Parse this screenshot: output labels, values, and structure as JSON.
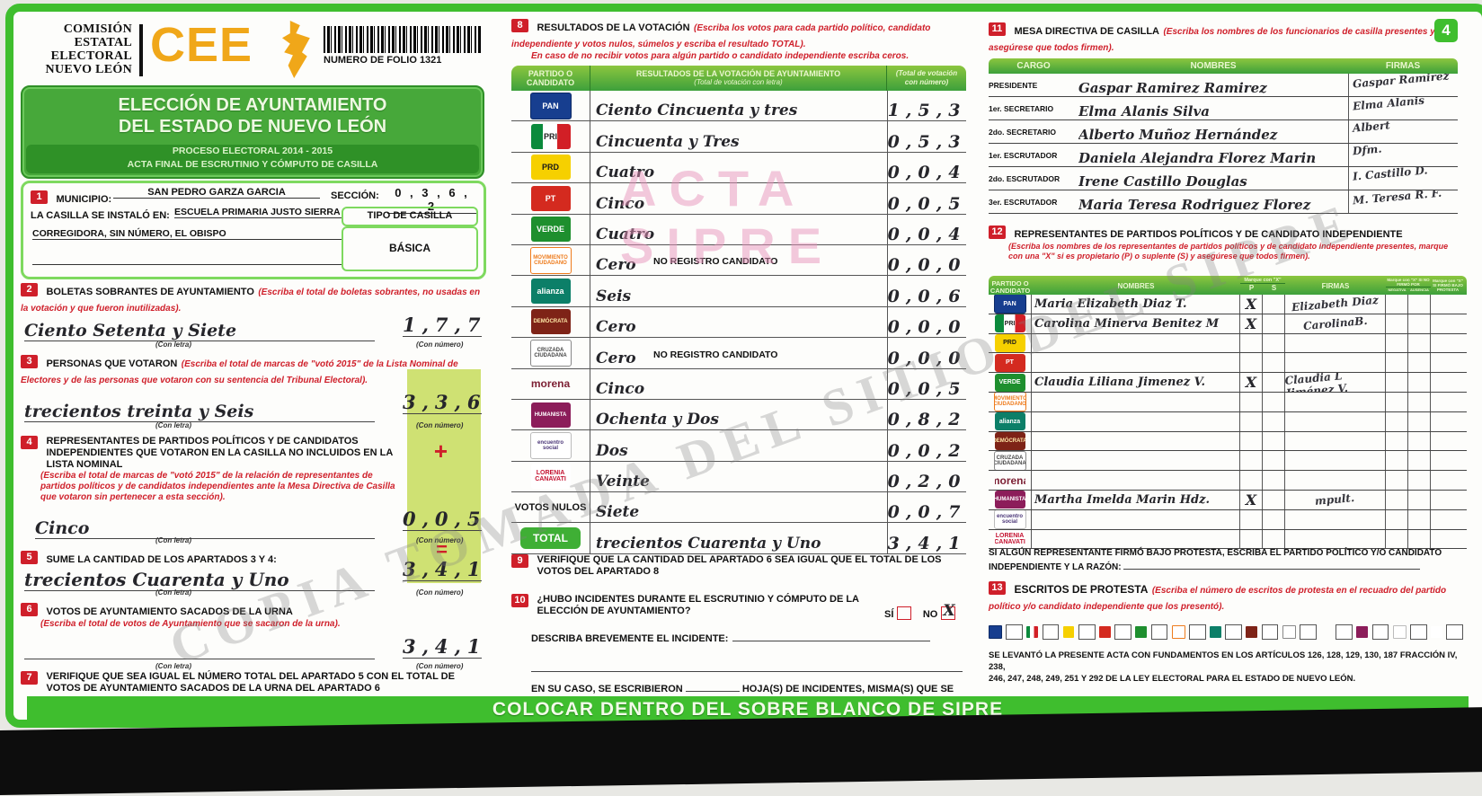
{
  "header": {
    "org_lines": [
      "COMISIÓN",
      "ESTATAL",
      "ELECTORAL",
      "NUEVO LEÓN"
    ],
    "logo_text": "CEE",
    "folio": "NUMERO DE FOLIO 1321",
    "title1": "ELECCIÓN DE AYUNTAMIENTO",
    "title2": "DEL ESTADO DE NUEVO LEÓN",
    "subtitle1": "PROCESO ELECTORAL 2014 - 2015",
    "subtitle2": "ACTA FINAL DE ESCRUTINIO Y CÓMPUTO DE CASILLA",
    "page_badge": "4"
  },
  "section1": {
    "num": "1",
    "municipio_label": "MUNICIPIO:",
    "municipio_value": "SAN PEDRO GARZA GARCIA",
    "seccion_label": "SECCIÓN:",
    "seccion_value": "0 , 3 , 6 , 2",
    "casilla_label": "LA CASILLA SE INSTALÓ EN:",
    "casilla_line1": "ESCUELA PRIMARIA JUSTO SIERRA",
    "casilla_line2": "CORREGIDORA, SIN NÚMERO, EL OBISPO",
    "tipo_label": "TIPO DE CASILLA",
    "tipo_value": "BÁSICA"
  },
  "section2": {
    "num": "2",
    "title": "BOLETAS SOBRANTES DE AYUNTAMIENTO",
    "inst": "(Escriba el total de boletas sobrantes, no usadas en la votación y que fueron inutilizadas).",
    "letra": "Ciento Setenta y Siete",
    "numero": "1,7,7",
    "conletra": "(Con letra)",
    "connumero": "(Con número)"
  },
  "section3": {
    "num": "3",
    "title": "PERSONAS QUE VOTARON",
    "inst": "(Escriba el total de marcas de \"votó 2015\" de la Lista Nominal de Electores y de las personas que votaron con su sentencia del Tribunal Electoral).",
    "letra": "trecientos treinta y Seis",
    "numero": "3,3,6",
    "conletra": "(Con letra)",
    "connumero": "(Con número)"
  },
  "section4": {
    "num": "4",
    "title": "REPRESENTANTES DE PARTIDOS POLÍTICOS Y DE CANDIDATOS INDEPENDIENTES QUE VOTARON EN LA CASILLA NO INCLUIDOS EN LA LISTA NOMINAL",
    "inst": "(Escriba el total de marcas de \"votó 2015\" de la relación de representantes de partidos políticos y de candidatos independientes ante la Mesa Directiva de Casilla que votaron sin pertenecer a esta sección).",
    "letra": "Cinco",
    "numero": "0,0,5",
    "plus": "+",
    "conletra": "(Con letra)",
    "connumero": "(Con número)"
  },
  "section5": {
    "num": "5",
    "title": "SUME LA CANTIDAD DE LOS APARTADOS 3 Y 4:",
    "letra": "trecientos Cuarenta y Uno",
    "numero": "3,4,1",
    "equals": "=",
    "conletra": "(Con letra)",
    "connumero": "(Con número)"
  },
  "section6": {
    "num": "6",
    "title": "VOTOS DE AYUNTAMIENTO SACADOS DE LA URNA",
    "inst": "(Escriba el total de votos de Ayuntamiento que se sacaron de la urna).",
    "letra": "",
    "numero": "3,4,1",
    "conletra": "(Con letra)",
    "connumero": "(Con número)"
  },
  "section7": {
    "num": "7",
    "title": "VERIFIQUE QUE SEA IGUAL EL NÚMERO TOTAL DEL APARTADO 5 CON EL TOTAL DE VOTOS DE AYUNTAMIENTO SACADOS DE LA URNA DEL APARTADO 6"
  },
  "section8": {
    "num": "8",
    "title": "RESULTADOS DE LA VOTACIÓN",
    "inst1": "(Escriba los votos para cada partido político, candidato independiente y votos nulos, súmelos y escriba el resultado TOTAL).",
    "inst2": "En caso de no recibir votos para algún partido o candidato independiente escriba ceros.",
    "col1": "PARTIDO O CANDIDATO",
    "col2a": "RESULTADOS DE LA VOTACIÓN DE AYUNTAMIENTO",
    "col2b": "(Total de votación con letra)",
    "col3": "(Total de votación con número)"
  },
  "results_rows": [
    {
      "party": "pan",
      "letra": "Ciento Cincuenta y tres",
      "numero": "1,5,3"
    },
    {
      "party": "pri",
      "letra": "Cincuenta y Tres",
      "numero": "0,5,3"
    },
    {
      "party": "prd",
      "letra": "Cuatro",
      "numero": "0,0,4"
    },
    {
      "party": "pt",
      "letra": "Cinco",
      "numero": "0,0,5"
    },
    {
      "party": "verde",
      "letra": "Cuatro",
      "numero": "0,0,4"
    },
    {
      "party": "mc",
      "letra": "Cero",
      "note": "NO REGISTRO CANDIDATO",
      "numero": "0,0,0"
    },
    {
      "party": "alianza",
      "letra": "Seis",
      "numero": "0,0,6"
    },
    {
      "party": "democrata",
      "letra": "Cero",
      "numero": "0,0,0"
    },
    {
      "party": "cruzada",
      "letra": "Cero",
      "note": "NO REGISTRO CANDIDATO",
      "numero": "0,0,0"
    },
    {
      "party": "morena",
      "letra": "Cinco",
      "numero": "0,0,5"
    },
    {
      "party": "humanista",
      "letra": "Ochenta y Dos",
      "numero": "0,8,2"
    },
    {
      "party": "encuentro",
      "letra": "Dos",
      "numero": "0,0,2"
    },
    {
      "party": "lorenia",
      "letra": "Veinte",
      "numero": "0,2,0"
    },
    {
      "party": "nulos",
      "label": "VOTOS NULOS",
      "letra": "Siete",
      "numero": "0,0,7"
    },
    {
      "party": "total",
      "label": "TOTAL",
      "letra": "trecientos Cuarenta y Uno",
      "numero": "3,4,1"
    }
  ],
  "parties": {
    "pan": {
      "abbr": "PAN"
    },
    "pri": {
      "abbr": "PRI"
    },
    "prd": {
      "abbr": "PRD"
    },
    "pt": {
      "abbr": "PT"
    },
    "verde": {
      "abbr": "VERDE"
    },
    "mc": {
      "abbr": "MOVIMIENTO CIUDADANO"
    },
    "alianza": {
      "abbr": "alianza"
    },
    "democrata": {
      "abbr": "DEMÓCRATA"
    },
    "cruzada": {
      "abbr": "CRUZADA CIUDADANA"
    },
    "morena": {
      "abbr": "morena"
    },
    "humanista": {
      "abbr": "HUMANISTA"
    },
    "encuentro": {
      "abbr": "encuentro social"
    },
    "lorenia": {
      "abbr": "LORENIA CANAVATI"
    }
  },
  "section9": {
    "num": "9",
    "title": "VERIFIQUE QUE LA CANTIDAD DEL APARTADO 6 SEA IGUAL QUE EL TOTAL DE LOS VOTOS DEL APARTADO 8"
  },
  "section10": {
    "num": "10",
    "q": "¿HUBO INCIDENTES DURANTE EL ESCRUTINIO Y CÓMPUTO DE LA ELECCIÓN DE AYUNTAMIENTO?",
    "si": "SÍ",
    "no": "NO",
    "no_mark": "X",
    "describe": "DESCRIBA BREVEMENTE EL INCIDENTE:",
    "hojas": "EN SU CASO, SE ESCRIBIERON",
    "hojas2": "HOJA(S) DE INCIDENTES, MISMA(S) QUE SE ANEXA(N) A LA PRESENTE ACTA."
  },
  "section11": {
    "num": "11",
    "title": "MESA DIRECTIVA DE CASILLA",
    "inst": "(Escriba los nombres de los funcionarios de casilla presentes y asegúrese que todos firmen).",
    "col_cargo": "CARGO",
    "col_nombres": "NOMBRES",
    "col_firmas": "FIRMAS"
  },
  "mesa_rows": [
    {
      "cargo": "PRESIDENTE",
      "nombre": "Gaspar Ramirez Ramirez",
      "firma": "Gaspar Ramirez"
    },
    {
      "cargo": "1er. SECRETARIO",
      "nombre": "Elma Alanis Silva",
      "firma": "Elma Alanis"
    },
    {
      "cargo": "2do. SECRETARIO",
      "nombre": "Alberto Muñoz Hernández",
      "firma": "Albert"
    },
    {
      "cargo": "1er. ESCRUTADOR",
      "nombre": "Daniela Alejandra Florez Marin",
      "firma": "Dfm."
    },
    {
      "cargo": "2do. ESCRUTADOR",
      "nombre": "Irene Castillo Douglas",
      "firma": "I. Castillo D."
    },
    {
      "cargo": "3er. ESCRUTADOR",
      "nombre": "Maria Teresa Rodriguez Florez",
      "firma": "M. Teresa R. F."
    }
  ],
  "section12": {
    "num": "12",
    "title": "REPRESENTANTES DE PARTIDOS POLÍTICOS Y DE CANDIDATO INDEPENDIENTE",
    "inst": "(Escriba los nombres de los representantes de partidos políticos y de candidato independiente presentes, marque con una \"X\" si es propietario (P) o suplente (S) y asegúrese que todos firmen).",
    "col_party": "PARTIDO O CANDIDATO",
    "col_nombres": "NOMBRES",
    "col_marque": "Marque con \"X\"",
    "col_p": "P",
    "col_s": "S",
    "col_firmas": "FIRMAS",
    "col_nofirmo": "Marque con \"X\" SI NO FIRMÓ POR",
    "col_negativa": "NEGATIVA",
    "col_ausencia": "AUSENCIA",
    "col_protesta": "Marque con \"X\" SI FIRMÓ BAJO PROTESTA",
    "protest_note1": "SI ALGÚN REPRESENTANTE FIRMÓ BAJO PROTESTA, ESCRIBA EL PARTIDO POLÍTICO Y/O CANDIDATO",
    "protest_note2": "INDEPENDIENTE Y LA RAZÓN:"
  },
  "reps_rows": [
    {
      "party": "pan",
      "nombre": "Maria Elizabeth Diaz T.",
      "p": "X",
      "s": "",
      "firma": "Elizabeth Diaz"
    },
    {
      "party": "pri",
      "nombre": "Carolina Minerva Benitez M",
      "p": "X",
      "s": "",
      "firma": "CarolinaB."
    },
    {
      "party": "prd",
      "nombre": "",
      "p": "",
      "s": "",
      "firma": ""
    },
    {
      "party": "pt",
      "nombre": "",
      "p": "",
      "s": "",
      "firma": ""
    },
    {
      "party": "verde",
      "nombre": "Claudia Liliana Jimenez V.",
      "p": "X",
      "s": "",
      "firma": "Claudia L Jiménez V."
    },
    {
      "party": "mc",
      "nombre": "",
      "p": "",
      "s": "",
      "firma": ""
    },
    {
      "party": "alianza",
      "nombre": "",
      "p": "",
      "s": "",
      "firma": ""
    },
    {
      "party": "democrata",
      "nombre": "",
      "p": "",
      "s": "",
      "firma": ""
    },
    {
      "party": "cruzada",
      "nombre": "",
      "p": "",
      "s": "",
      "firma": ""
    },
    {
      "party": "morena",
      "nombre": "",
      "p": "",
      "s": "",
      "firma": ""
    },
    {
      "party": "humanista",
      "nombre": "Martha Imelda Marin Hdz.",
      "p": "X",
      "s": "",
      "firma": "mpult."
    },
    {
      "party": "encuentro",
      "nombre": "",
      "p": "",
      "s": "",
      "firma": ""
    },
    {
      "party": "lorenia",
      "nombre": "",
      "p": "",
      "s": "",
      "firma": ""
    }
  ],
  "section13": {
    "num": "13",
    "title": "ESCRITOS DE PROTESTA",
    "inst": "(Escriba el número de escritos de protesta en el recuadro del partido político y/o candidato independiente que los presentó).",
    "parties": [
      "pan",
      "pri",
      "prd",
      "pt",
      "verde",
      "mc",
      "alianza",
      "democrata",
      "cruzada",
      "morena",
      "humanista",
      "encuentro",
      "lorenia"
    ]
  },
  "footer": {
    "legal1": "SE LEVANTÓ LA PRESENTE ACTA CON FUNDAMENTOS EN LOS ARTÍCULOS 126, 128, 129, 130, 187 FRACCIÓN IV, 238,",
    "legal2": "246, 247, 248, 249, 251 Y 292 DE LA LEY ELECTORAL PARA EL ESTADO DE NUEVO LEÓN.",
    "banner": "COLOCAR DENTRO DEL SOBRE BLANCO DE SIPRE"
  },
  "watermarks": {
    "acta_line1": "ACTA",
    "acta_line2": "SIPRE",
    "diagonal": "COPIA TOMADA DEL SITIO DEL SIPRE"
  },
  "colors": {
    "frame_green": "#3fbe2e",
    "header_green": "#47a83a",
    "table_head_green": "#3da03b",
    "red_accent": "#cf1f2a",
    "highlight_yellow_green": "#cfe173",
    "watermark_pink": "#e794bc",
    "cee_orange": "#f0a719"
  }
}
